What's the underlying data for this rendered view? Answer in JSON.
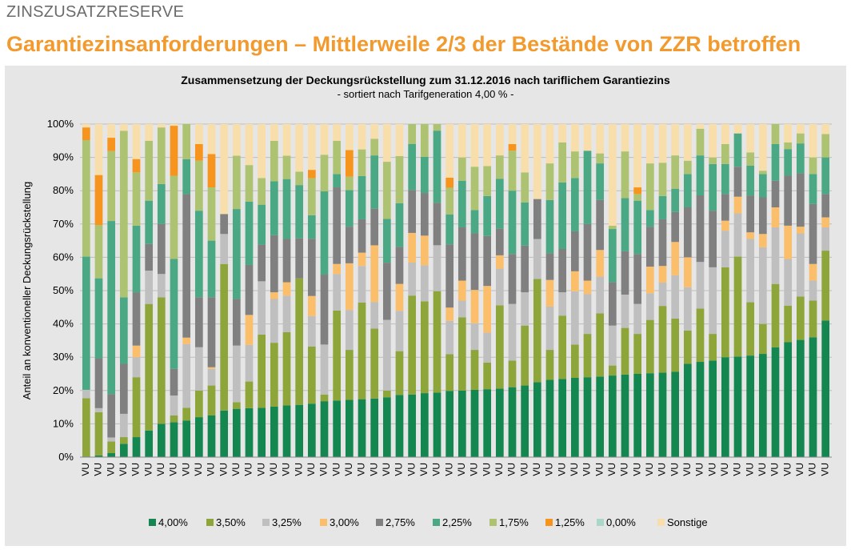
{
  "header": {
    "section": "ZINSZUSATZRESERVE",
    "headline": "Garantiezinsanforderungen – Mittlerweile 2/3 der Bestände von ZZR betroffen"
  },
  "chart_data": {
    "type": "bar",
    "stacked": true,
    "title": "Zusammensetzung der Deckungsrückstellung zum 31.12.2016 nach tariflichem Garantiezins",
    "subtitle": "- sortiert nach Tarifgeneration 4,00 % -",
    "ylabel": "Anteil an konventioneller Deckungsrückstellung",
    "xlabel": "",
    "ylim": [
      0,
      100
    ],
    "yticks": [
      "0%",
      "10%",
      "20%",
      "30%",
      "40%",
      "50%",
      "60%",
      "70%",
      "80%",
      "90%",
      "100%"
    ],
    "category_label": "VU",
    "legend_position": "bottom",
    "series_names": [
      "4,00%",
      "3,50%",
      "3,25%",
      "3,00%",
      "2,75%",
      "2,25%",
      "1,75%",
      "1,25%",
      "0,00%",
      "Sonstige"
    ],
    "series_colors": [
      "#148750",
      "#8ea53a",
      "#bfbfbf",
      "#fbbf6c",
      "#808080",
      "#4aa885",
      "#adc372",
      "#f7941d",
      "#a9d8c8",
      "#f7deaa"
    ],
    "totals_pct": [
      0.2,
      0.5,
      1.2,
      4,
      6,
      8,
      10,
      10.5,
      11.5,
      12,
      12.5,
      14,
      14.5,
      14.7,
      14.8,
      15,
      15.5,
      15.7,
      15.9,
      16.8,
      17,
      17.2,
      17.4,
      17.6,
      17.8,
      18.5,
      19,
      19.5,
      19.7,
      19.9,
      20,
      20.2,
      20.4,
      20.6,
      21,
      21.5,
      22.5,
      23.2,
      23.5,
      23.8,
      24,
      24.2,
      24.5,
      24.8,
      25,
      25.2,
      25.4,
      25.6,
      28,
      28.6,
      29,
      30,
      30.2,
      30.5,
      31,
      33,
      34.5,
      35.2,
      36,
      41
    ],
    "stacks": [
      [
        0.2,
        17.5,
        2.5,
        0,
        0,
        40,
        35,
        3.8,
        0,
        1
      ],
      [
        0.5,
        13,
        1.2,
        0,
        15,
        24,
        16,
        15,
        0,
        15.3
      ],
      [
        1.2,
        3.5,
        1.2,
        0,
        13,
        52,
        21,
        4,
        0,
        4.1
      ],
      [
        4,
        2,
        7,
        0,
        15,
        20,
        50,
        0,
        0,
        2
      ],
      [
        6,
        18,
        6,
        3.5,
        16,
        20,
        16,
        4,
        0,
        10.5
      ],
      [
        8,
        38,
        10,
        0,
        8,
        13,
        18,
        0,
        0,
        5
      ],
      [
        10,
        38,
        7,
        0,
        15,
        12,
        17,
        0,
        0,
        1
      ],
      [
        10.5,
        2,
        6,
        0,
        8,
        33,
        25,
        15,
        0,
        0.5
      ],
      [
        11.5,
        4,
        20,
        2,
        45,
        11,
        11,
        0,
        0,
        0
      ],
      [
        12,
        8,
        13,
        0,
        15,
        26,
        15,
        5,
        0,
        6
      ],
      [
        12.5,
        9,
        5,
        0.5,
        21,
        17,
        16,
        10,
        0,
        9
      ],
      [
        14,
        44,
        9,
        0,
        6,
        0,
        0,
        0,
        0,
        27
      ],
      [
        14.5,
        2,
        17,
        0,
        14,
        27,
        16,
        0,
        0,
        9.5
      ],
      [
        14.7,
        8,
        11,
        9,
        15,
        19,
        11,
        0,
        0,
        12.3
      ],
      [
        14.8,
        22,
        16,
        0,
        11,
        12,
        8,
        0,
        0,
        16.2
      ],
      [
        15,
        19,
        13,
        2,
        17,
        16,
        12,
        0,
        0,
        5
      ],
      [
        15.5,
        22,
        11,
        4,
        13,
        18,
        7,
        0,
        0,
        9.5
      ],
      [
        15.7,
        38,
        0,
        0,
        12,
        16,
        4,
        0,
        0,
        14.3
      ],
      [
        15.9,
        17,
        9,
        6,
        17,
        7,
        11,
        2.5,
        0,
        13.6
      ],
      [
        16.8,
        2,
        15,
        0,
        21,
        25,
        11,
        0,
        0,
        9.2
      ],
      [
        17,
        27,
        11,
        3,
        23,
        4,
        10,
        0,
        0,
        5
      ],
      [
        17.2,
        15,
        12,
        14,
        11,
        11,
        4,
        8,
        0,
        7.8
      ],
      [
        17.4,
        29,
        11,
        4,
        10,
        13,
        8,
        0,
        0,
        7.6
      ],
      [
        17.6,
        21,
        8,
        17,
        11,
        16,
        5,
        0,
        0,
        4.4
      ],
      [
        17.8,
        2,
        21,
        0,
        17,
        13,
        17,
        0,
        0,
        11.2
      ],
      [
        18.5,
        13,
        12,
        8,
        11,
        13,
        14,
        0,
        0,
        9.5
      ],
      [
        19,
        30,
        10,
        9,
        13,
        14,
        6,
        0,
        0,
        -1
      ],
      [
        19.5,
        28,
        11,
        9,
        13,
        11,
        10,
        0,
        0,
        -1.5
      ],
      [
        19.7,
        31,
        14,
        0,
        13,
        22,
        2,
        0,
        0,
        -1.7
      ],
      [
        19.9,
        11,
        10,
        4,
        19,
        9,
        8,
        3,
        0,
        16.1
      ],
      [
        20,
        22,
        5,
        6,
        16,
        14,
        7,
        0,
        0,
        10
      ],
      [
        20.2,
        12,
        8,
        10,
        17,
        7,
        13,
        0,
        0,
        12.8
      ],
      [
        20.4,
        8,
        9,
        14,
        15,
        12,
        9,
        0,
        0,
        12.6
      ],
      [
        20.6,
        25,
        11,
        4,
        8,
        15,
        7,
        0,
        0,
        9.4
      ],
      [
        21,
        8,
        17,
        0,
        15,
        19,
        12,
        2,
        0,
        6
      ],
      [
        21.5,
        18,
        10,
        0,
        14,
        13,
        9,
        0,
        0,
        14.5
      ],
      [
        22.5,
        31,
        12,
        0,
        12,
        0,
        0,
        0,
        0,
        22.5
      ],
      [
        23.2,
        9,
        13,
        8,
        8,
        16,
        11,
        0,
        0,
        11.8
      ],
      [
        23.5,
        19,
        7,
        0,
        13,
        20,
        12,
        0,
        0,
        5.5
      ],
      [
        23.8,
        10,
        16,
        6,
        12,
        16,
        8,
        0,
        0,
        8.2
      ],
      [
        24,
        13,
        12,
        4,
        17,
        22,
        0,
        0,
        0,
        8
      ],
      [
        24.2,
        19,
        11,
        8,
        15,
        11,
        3,
        0,
        0,
        8.8
      ],
      [
        24.5,
        3,
        12,
        0,
        13,
        16,
        1,
        0,
        0,
        30.5
      ],
      [
        24.8,
        14,
        10,
        0,
        13,
        16,
        14,
        0,
        0,
        8.2
      ],
      [
        25,
        12,
        9,
        0,
        15,
        16,
        2,
        2,
        0,
        19
      ],
      [
        25.2,
        16,
        8,
        8,
        12,
        5,
        14,
        0,
        0,
        11.8
      ],
      [
        25.4,
        20,
        7,
        5,
        14,
        7,
        10,
        0,
        0,
        11.6
      ],
      [
        25.6,
        16,
        13,
        10,
        9,
        7,
        10,
        0,
        0,
        9.4
      ],
      [
        28,
        10,
        13,
        9,
        15,
        10,
        4,
        0,
        0,
        11
      ],
      [
        28.6,
        16,
        14,
        0,
        20,
        12,
        8,
        0,
        0,
        1.4
      ],
      [
        29,
        8,
        20,
        0,
        17,
        14,
        2,
        0,
        0,
        10
      ],
      [
        30,
        27,
        11,
        3,
        8,
        9,
        6,
        0,
        0,
        6
      ],
      [
        30.2,
        30,
        13,
        5,
        9,
        10,
        0,
        0,
        0,
        2.8
      ],
      [
        30.5,
        16,
        19,
        2,
        11,
        9,
        4,
        0,
        0,
        8.5
      ],
      [
        31,
        9,
        23,
        4,
        11,
        7,
        1,
        0,
        0,
        14
      ],
      [
        33,
        19,
        17,
        6,
        8,
        11,
        6,
        0,
        0,
        0
      ],
      [
        34.5,
        11,
        14,
        10,
        15,
        8,
        2,
        0,
        0,
        5.5
      ],
      [
        35.2,
        13,
        19,
        2,
        16,
        9,
        3,
        0,
        0,
        2.8
      ],
      [
        36,
        11,
        6,
        5,
        18,
        9,
        5,
        0,
        0,
        10
      ],
      [
        41,
        21,
        7,
        3,
        7,
        11,
        7,
        0,
        0,
        3
      ]
    ]
  }
}
